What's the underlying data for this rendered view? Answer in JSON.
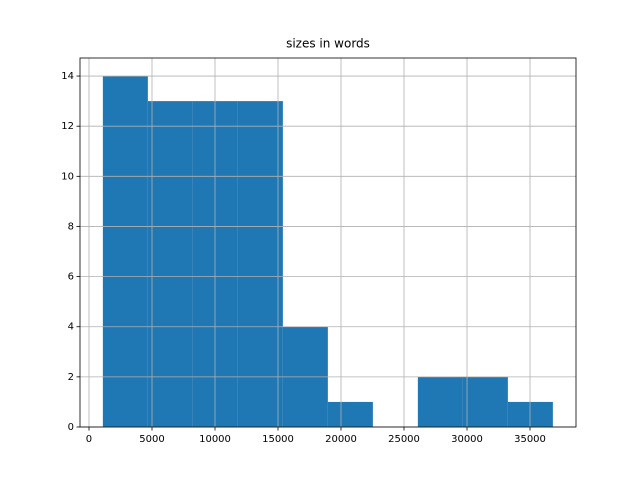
{
  "chart_data": {
    "type": "histogram",
    "title": "sizes in words",
    "bins": [
      1100,
      4671,
      8243,
      11814,
      15386,
      18957,
      22529,
      26100,
      29671,
      33243,
      36814
    ],
    "values": [
      14,
      13,
      13,
      13,
      4,
      1,
      0,
      2,
      2,
      1
    ],
    "color": "#1f77b4",
    "xlim": [
      -714,
      38650
    ],
    "xticks": [
      0,
      5000,
      10000,
      15000,
      20000,
      25000,
      30000,
      35000
    ],
    "ylim": [
      0,
      14.72
    ],
    "yticks": [
      0,
      2,
      4,
      6,
      8,
      10,
      12,
      14
    ],
    "grid": true
  }
}
